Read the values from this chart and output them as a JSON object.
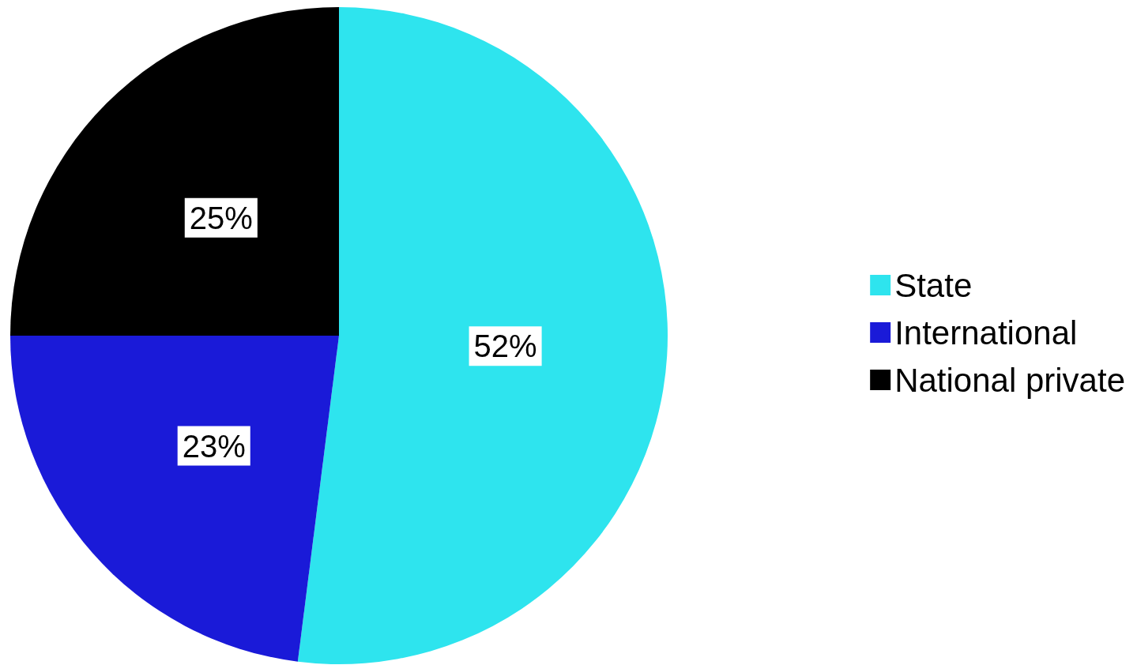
{
  "chart_data": {
    "type": "pie",
    "categories": [
      "State",
      "International",
      "National private"
    ],
    "values": [
      52,
      23,
      25
    ],
    "value_labels": [
      "52%",
      "23%",
      "25%"
    ],
    "colors": [
      "#2ee4ee",
      "#1a1ad8",
      "#000000"
    ],
    "legend": "right"
  }
}
